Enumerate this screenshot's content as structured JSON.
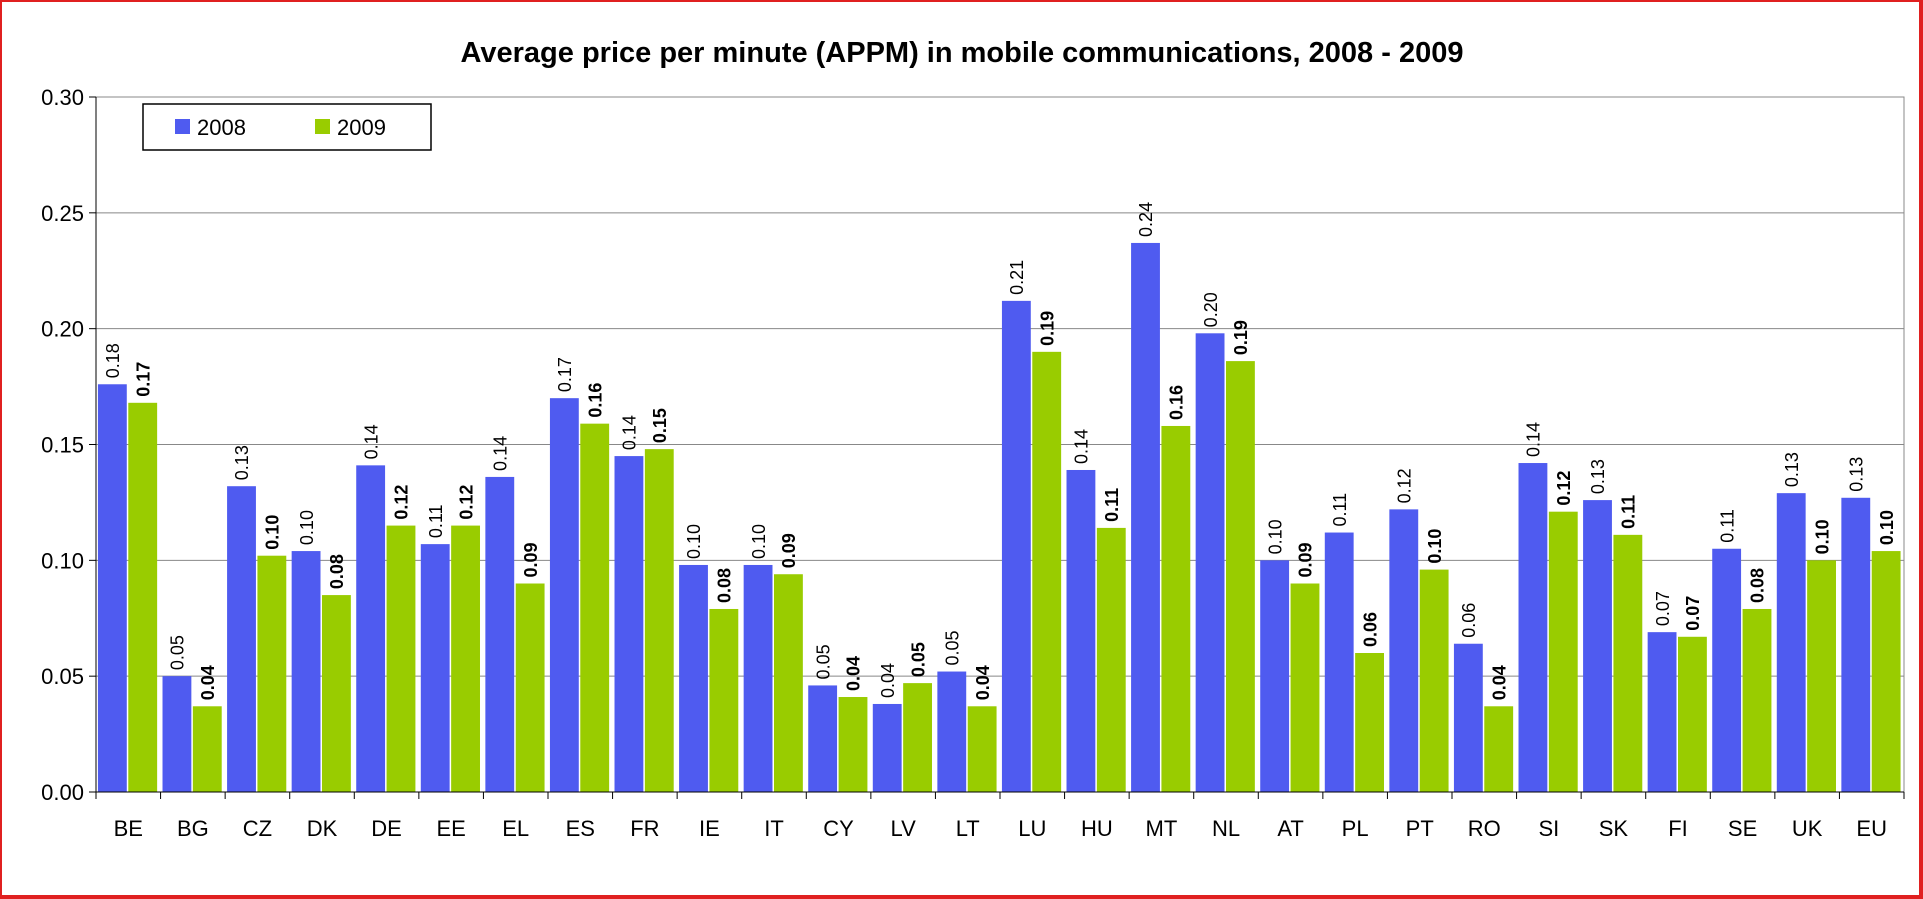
{
  "chart_data": {
    "type": "bar",
    "title": "Average price per minute (APPM) in mobile communications, 2008 - 2009",
    "xlabel": "",
    "ylabel": "",
    "ylim": [
      0,
      0.3
    ],
    "yticks": [
      "0.00",
      "0.05",
      "0.10",
      "0.15",
      "0.20",
      "0.25",
      "0.30"
    ],
    "grid": true,
    "legend_position": "top-left",
    "categories": [
      "BE",
      "BG",
      "CZ",
      "DK",
      "DE",
      "EE",
      "EL",
      "ES",
      "FR",
      "IE",
      "IT",
      "CY",
      "LV",
      "LT",
      "LU",
      "HU",
      "MT",
      "NL",
      "AT",
      "PL",
      "PT",
      "RO",
      "SI",
      "SK",
      "FI",
      "SE",
      "UK",
      "EU"
    ],
    "series": [
      {
        "name": "2008",
        "color": "#4f5bf0",
        "values": [
          0.176,
          0.05,
          0.132,
          0.104,
          0.141,
          0.107,
          0.136,
          0.17,
          0.145,
          0.098,
          0.098,
          0.046,
          0.038,
          0.052,
          0.212,
          0.139,
          0.237,
          0.198,
          0.1,
          0.112,
          0.122,
          0.064,
          0.142,
          0.126,
          0.069,
          0.105,
          0.129,
          0.127
        ],
        "labels": [
          "0.18",
          "0.05",
          "0.13",
          "0.10",
          "0.14",
          "0.11",
          "0.14",
          "0.17",
          "0.14",
          "0.10",
          "0.10",
          "0.05",
          "0.04",
          "0.05",
          "0.21",
          "0.14",
          "0.24",
          "0.20",
          "0.10",
          "0.11",
          "0.12",
          "0.06",
          "0.14",
          "0.13",
          "0.07",
          "0.11",
          "0.13",
          "0.13"
        ]
      },
      {
        "name": "2009",
        "color": "#99cc00",
        "values": [
          0.168,
          0.037,
          0.102,
          0.085,
          0.115,
          0.115,
          0.09,
          0.159,
          0.148,
          0.079,
          0.094,
          0.041,
          0.047,
          0.037,
          0.19,
          0.114,
          0.158,
          0.186,
          0.09,
          0.06,
          0.096,
          0.037,
          0.121,
          0.111,
          0.067,
          0.079,
          0.1,
          0.104
        ],
        "labels": [
          "0.17",
          "0.04",
          "0.10",
          "0.08",
          "0.12",
          "0.12",
          "0.09",
          "0.16",
          "0.15",
          "0.08",
          "0.09",
          "0.04",
          "0.05",
          "0.04",
          "0.19",
          "0.11",
          "0.16",
          "0.19",
          "0.09",
          "0.06",
          "0.10",
          "0.04",
          "0.12",
          "0.11",
          "0.07",
          "0.08",
          "0.10",
          "0.10"
        ]
      }
    ]
  }
}
